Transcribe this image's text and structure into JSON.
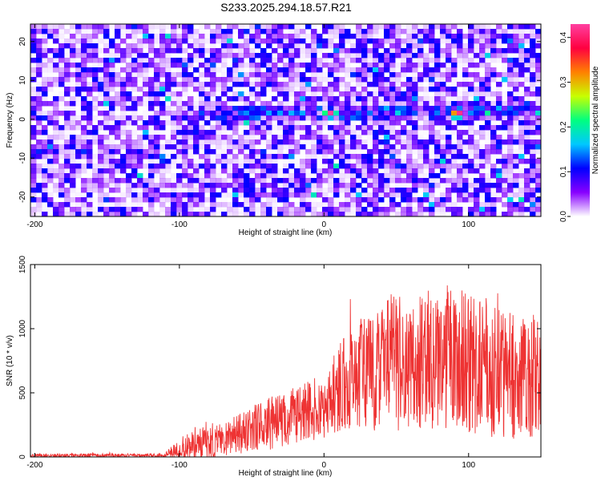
{
  "title": "S233.2025.294.18.57.R21",
  "chart_data": [
    {
      "type": "heatmap",
      "name": "spectrogram",
      "title": "S233.2025.294.18.57.R21",
      "xlabel": "Height of straight line (km)",
      "ylabel": "Frequency (Hz)",
      "xlim": [
        -203,
        150
      ],
      "ylim": [
        -25,
        24.5
      ],
      "xticks": [
        -200,
        -100,
        0,
        100
      ],
      "yticks": [
        -20,
        -10,
        0,
        10,
        20
      ],
      "colorbar": {
        "label": "Normalized spectral amplitude",
        "range": [
          0,
          0.43
        ],
        "ticks": [
          0.0,
          0.1,
          0.2,
          0.3,
          0.4
        ],
        "colors": [
          "#ffffff",
          "#8800ff",
          "#0000ff",
          "#00c8ff",
          "#00ff80",
          "#c8ff00",
          "#ff8000",
          "#ff0040",
          "#ff40a0"
        ]
      },
      "background_level": 0.05,
      "signal_band": {
        "center_hz": 1.5,
        "start_km": -110,
        "end_km": 150,
        "peak_km": [
          5,
          92
        ],
        "peak_value": 0.41
      }
    },
    {
      "type": "line",
      "name": "snr",
      "xlabel": "Height of straight line (km)",
      "ylabel": "SNR (10 * v/v)",
      "xlim": [
        -203,
        150
      ],
      "ylim": [
        0,
        1500
      ],
      "xticks": [
        -200,
        -100,
        0,
        100
      ],
      "yticks": [
        0,
        500,
        1000,
        1500
      ],
      "color": "#ee3333",
      "envelope": {
        "x": [
          -203,
          -110,
          -100,
          -80,
          -60,
          -40,
          -20,
          0,
          20,
          40,
          60,
          80,
          100,
          120,
          150
        ],
        "mean": [
          10,
          12,
          60,
          120,
          180,
          250,
          330,
          420,
          620,
          700,
          760,
          780,
          720,
          650,
          620
        ],
        "spread": [
          15,
          15,
          90,
          130,
          160,
          200,
          230,
          280,
          420,
          500,
          560,
          580,
          560,
          520,
          480
        ]
      }
    }
  ]
}
